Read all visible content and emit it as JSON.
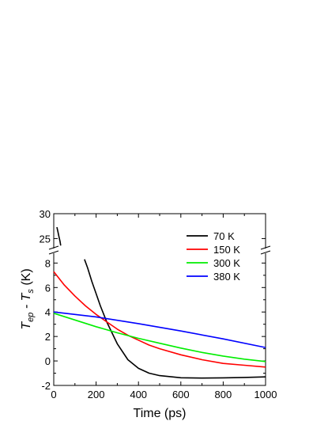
{
  "chart_data": {
    "type": "line",
    "xlabel": "Time (ps)",
    "ylabel": {
      "T1": "T",
      "s1": "ep",
      "mid": " - T",
      "s2": "s",
      "unit": " (K)"
    },
    "xlim": [
      0,
      1000
    ],
    "x_ticks": [
      "0",
      "200",
      "400",
      "600",
      "800",
      "1000"
    ],
    "y_ticks_lower": [
      "-2",
      "0",
      "2",
      "4",
      "6",
      "8"
    ],
    "y_ticks_upper": [
      "25",
      "30"
    ],
    "ylim_lower": [
      -2,
      8.8
    ],
    "ylim_upper": [
      23,
      30
    ],
    "axis_break": true,
    "legend_position": "top-right",
    "grid": false,
    "series": [
      {
        "name": "70 K",
        "color": "#000000",
        "segments": [
          [
            [
              15,
              27.3
            ],
            [
              20,
              26.3
            ],
            [
              25,
              25.3
            ],
            [
              30,
              24.4
            ],
            [
              33,
              23.6
            ]
          ],
          [
            [
              145,
              8.3
            ],
            [
              160,
              7.6
            ],
            [
              180,
              6.5
            ],
            [
              200,
              5.5
            ],
            [
              220,
              4.5
            ],
            [
              250,
              3.2
            ],
            [
              300,
              1.4
            ],
            [
              350,
              0.1
            ],
            [
              400,
              -0.6
            ],
            [
              450,
              -1.0
            ],
            [
              500,
              -1.2
            ],
            [
              600,
              -1.37
            ],
            [
              700,
              -1.4
            ],
            [
              800,
              -1.38
            ],
            [
              900,
              -1.35
            ],
            [
              1000,
              -1.3
            ]
          ]
        ]
      },
      {
        "name": "150 K",
        "color": "#ff0000",
        "segments": [
          [
            [
              0,
              7.3
            ],
            [
              50,
              6.2
            ],
            [
              100,
              5.3
            ],
            [
              150,
              4.5
            ],
            [
              200,
              3.8
            ],
            [
              250,
              3.2
            ],
            [
              300,
              2.6
            ],
            [
              350,
              2.1
            ],
            [
              400,
              1.7
            ],
            [
              450,
              1.3
            ],
            [
              500,
              1.0
            ],
            [
              600,
              0.5
            ],
            [
              700,
              0.1
            ],
            [
              800,
              -0.2
            ],
            [
              900,
              -0.35
            ],
            [
              1000,
              -0.5
            ]
          ]
        ]
      },
      {
        "name": "300 K",
        "color": "#00ee00",
        "segments": [
          [
            [
              0,
              3.9
            ],
            [
              100,
              3.35
            ],
            [
              200,
              2.8
            ],
            [
              300,
              2.3
            ],
            [
              400,
              1.85
            ],
            [
              500,
              1.45
            ],
            [
              600,
              1.05
            ],
            [
              700,
              0.7
            ],
            [
              800,
              0.4
            ],
            [
              900,
              0.15
            ],
            [
              1000,
              -0.05
            ]
          ]
        ]
      },
      {
        "name": "380 K",
        "color": "#0000ff",
        "segments": [
          [
            [
              0,
              4.0
            ],
            [
              200,
              3.6
            ],
            [
              400,
              3.05
            ],
            [
              600,
              2.45
            ],
            [
              800,
              1.8
            ],
            [
              1000,
              1.1
            ]
          ]
        ]
      }
    ]
  }
}
